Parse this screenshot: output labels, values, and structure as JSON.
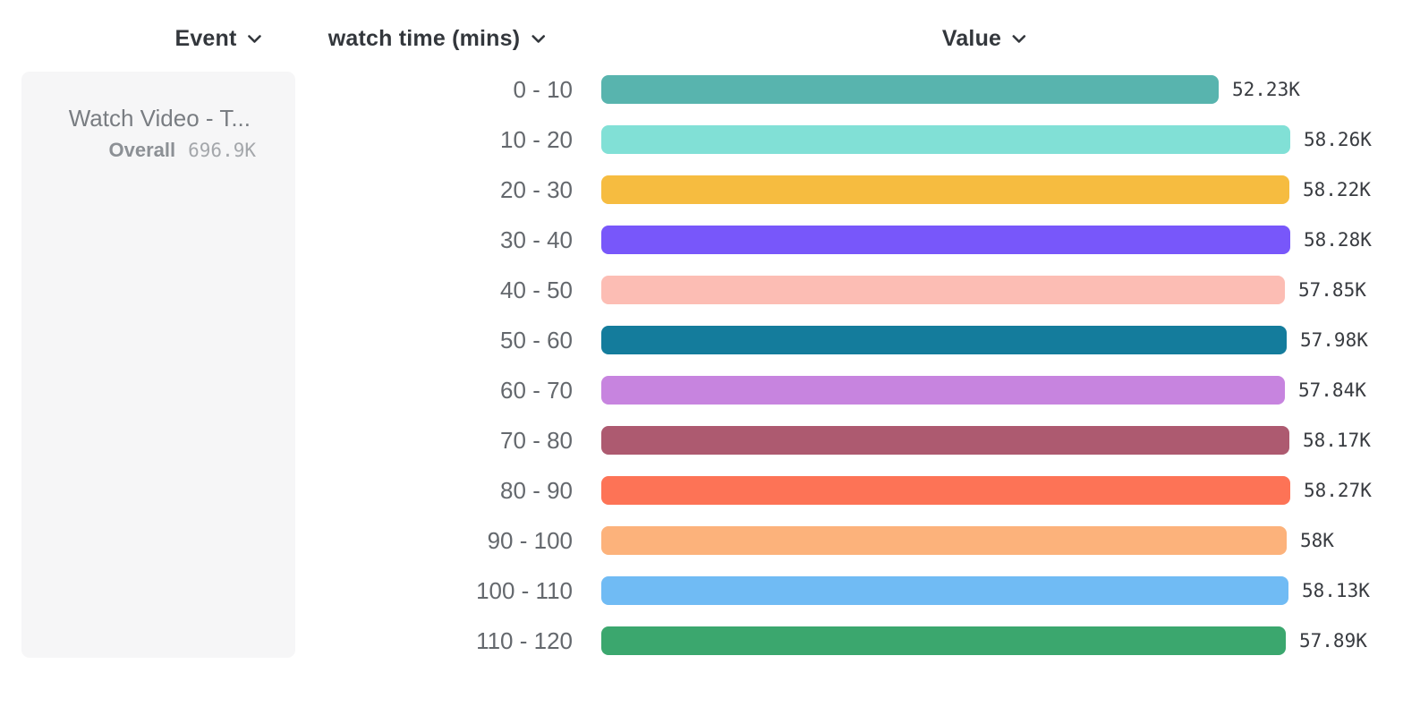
{
  "header": {
    "columns": [
      {
        "id": "event",
        "label": "Event"
      },
      {
        "id": "breakdown",
        "label": "watch time (mins)"
      },
      {
        "id": "value",
        "label": "Value"
      }
    ]
  },
  "event_card": {
    "title": "Watch Video - T...",
    "overall_label": "Overall",
    "overall_value": "696.9K"
  },
  "chart_data": {
    "type": "bar",
    "orientation": "horizontal",
    "categories": [
      "0 - 10",
      "10 - 20",
      "20 - 30",
      "30 - 40",
      "40 - 50",
      "50 - 60",
      "60 - 70",
      "70 - 80",
      "80 - 90",
      "90 - 100",
      "100 - 110",
      "110 - 120"
    ],
    "values": [
      52230,
      58260,
      58220,
      58280,
      57850,
      57980,
      57840,
      58170,
      58270,
      58000,
      58130,
      57890
    ],
    "value_labels": [
      "52.23K",
      "58.26K",
      "58.22K",
      "58.28K",
      "57.85K",
      "57.98K",
      "57.84K",
      "58.17K",
      "58.27K",
      "58K",
      "58.13K",
      "57.89K"
    ],
    "bar_colors": [
      "#58b4ae",
      "#81e0d6",
      "#f6bc40",
      "#7857fa",
      "#fcbdb4",
      "#147c9c",
      "#c784df",
      "#ad5a70",
      "#fd7356",
      "#fcb27b",
      "#70bbf4",
      "#3ba76e"
    ],
    "overall_total_label": "696.9K",
    "xlim": [
      0,
      58280
    ],
    "legend_position": "left",
    "grid": false
  },
  "colors": {
    "header_text": "#33373c",
    "category_label": "#64686d",
    "value_label": "#383b40",
    "card_background": "#f6f6f7",
    "card_title": "#797d82",
    "card_overall_label": "#8c9095",
    "card_overall_value": "#a4a7ab",
    "background": "#ffffff"
  },
  "icons": {
    "chevron_down": "v"
  }
}
